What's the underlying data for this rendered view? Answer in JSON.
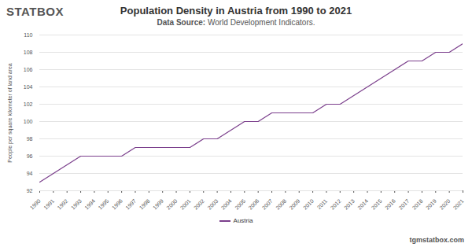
{
  "chart_data": {
    "type": "line",
    "brand": "STATBOX",
    "title": "Population Density in Austria from 1990 to 2021",
    "subtitle": "Data Source: World Development Indicators.",
    "footer": "tgmstatbox.com",
    "y_label": "People per square kilometer of land area",
    "x": [
      1990,
      1991,
      1992,
      1993,
      1994,
      1995,
      1996,
      1997,
      1998,
      1999,
      2000,
      2001,
      2002,
      2003,
      2004,
      2005,
      2006,
      2007,
      2008,
      2009,
      2010,
      2011,
      2012,
      2013,
      2014,
      2015,
      2016,
      2017,
      2018,
      2019,
      2020,
      2021
    ],
    "series": [
      {
        "name": "Austria",
        "color": "#7b3f8c",
        "values": [
          93,
          94,
          95,
          96,
          96,
          96,
          96,
          97,
          97,
          97,
          97,
          97,
          98,
          98,
          99,
          100,
          100,
          101,
          101,
          101,
          101,
          102,
          102,
          103,
          104,
          105,
          106,
          107,
          107,
          108,
          108,
          109
        ]
      }
    ],
    "xlim": [
      1990,
      2021
    ],
    "xticks": [
      1990,
      1991,
      1992,
      1993,
      1994,
      1995,
      1996,
      1997,
      1998,
      1999,
      2000,
      2001,
      2002,
      2003,
      2004,
      2005,
      2006,
      2007,
      2008,
      2009,
      2010,
      2011,
      2012,
      2013,
      2014,
      2015,
      2016,
      2017,
      2018,
      2019,
      2020,
      2021
    ],
    "ylim": [
      92,
      110
    ],
    "yticks": [
      92,
      94,
      96,
      98,
      100,
      102,
      104,
      106,
      108,
      110
    ],
    "grid": true,
    "legend": "bottom"
  }
}
